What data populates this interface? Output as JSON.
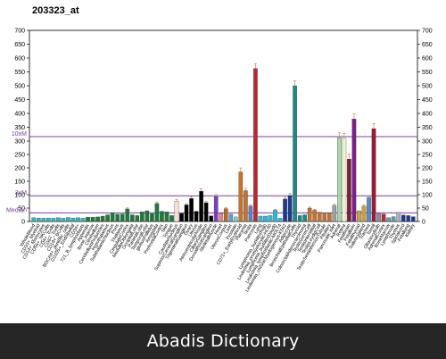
{
  "chart_data": {
    "type": "bar",
    "title": "203323_at",
    "ylim": [
      0,
      700
    ],
    "yticks": [
      0,
      50,
      100,
      150,
      200,
      250,
      300,
      350,
      400,
      450,
      500,
      550,
      600,
      650,
      700
    ],
    "reference_lines": [
      {
        "label": "10xM",
        "value": 316,
        "color": "#7b3fa3"
      },
      {
        "label": "3xM",
        "value": 96,
        "color": "#7b3fa3"
      },
      {
        "label": "Median",
        "value": 32,
        "color": "#7b3fa3"
      }
    ],
    "bars": [
      {
        "label": "WholeBlood",
        "value": 14,
        "color": "#2bb7b7"
      },
      {
        "label": "CD33+_Myeloid",
        "value": 13,
        "color": "#2bb7b7"
      },
      {
        "label": "CD14+_Monocytes",
        "value": 12,
        "color": "#2bb7b7"
      },
      {
        "label": "CD56+_NKCells",
        "value": 13,
        "color": "#2bb7b7"
      },
      {
        "label": "CD4+_Tcells",
        "value": 12,
        "color": "#2bb7b7"
      },
      {
        "label": "CD8+_Tcells",
        "value": 14,
        "color": "#2bb7b7"
      },
      {
        "label": "CD19+_BCells",
        "value": 12,
        "color": "#2bb7b7"
      },
      {
        "label": "BDCA4+_dentritic_cells",
        "value": 15,
        "color": "#2bb7b7"
      },
      {
        "label": "CD105+_Endothelial",
        "value": 13,
        "color": "#2bb7b7"
      },
      {
        "label": "CD34+",
        "value": 14,
        "color": "#2bb7b7"
      },
      {
        "label": "721_B_lymphoblasts",
        "value": 12,
        "color": "#2bb7b7"
      },
      {
        "label": "Appendix",
        "value": 16,
        "color": "#1f7a3a"
      },
      {
        "label": "Bone_marrow",
        "value": 16,
        "color": "#1f7a3a"
      },
      {
        "label": "Cerebellum",
        "value": 17,
        "color": "#1f7a3a"
      },
      {
        "label": "CerebellumPeduncles",
        "value": 20,
        "color": "#1f7a3a"
      },
      {
        "label": "Hypothalamus",
        "value": 25,
        "color": "#1f7a3a"
      },
      {
        "label": "SubthalamicNucleus",
        "value": 33,
        "color": "#1f7a3a"
      },
      {
        "label": "Pons",
        "value": 27,
        "color": "#1f7a3a"
      },
      {
        "label": "Thalamus",
        "value": 28,
        "color": "#1f7a3a"
      },
      {
        "label": "CingulateCortex",
        "value": 47,
        "color": "#1f7a3a"
      },
      {
        "label": "MedullaOblongata",
        "value": 25,
        "color": "#1f7a3a"
      },
      {
        "label": "OccipitalLobe",
        "value": 22,
        "color": "#1f7a3a"
      },
      {
        "label": "ParietalLobe",
        "value": 36,
        "color": "#1f7a3a"
      },
      {
        "label": "TemporalLobe",
        "value": 40,
        "color": "#1f7a3a"
      },
      {
        "label": "globusPallidus",
        "value": 29,
        "color": "#1f7a3a"
      },
      {
        "label": "Amygdala",
        "value": 67,
        "color": "#1f7a3a"
      },
      {
        "label": "PrefrontalCortex",
        "value": 38,
        "color": "#1f7a3a"
      },
      {
        "label": "Skin",
        "value": 36,
        "color": "#1f7a3a"
      },
      {
        "label": "Tongue",
        "value": 22,
        "color": "#1f7a3a"
      },
      {
        "label": "CaudateNucleus",
        "value": 76,
        "color": "#f4e0d0"
      },
      {
        "label": "SuperiorCervicalGanglion",
        "value": 30,
        "color": "#000000"
      },
      {
        "label": "TrigeminalGanglion",
        "value": 62,
        "color": "#000000"
      },
      {
        "label": "Ovary",
        "value": 86,
        "color": "#000000"
      },
      {
        "label": "Uterus",
        "value": 38,
        "color": "#000000"
      },
      {
        "label": "AtrioventricularNode",
        "value": 113,
        "color": "#000000"
      },
      {
        "label": "CiliaryGanglion",
        "value": 70,
        "color": "#000000"
      },
      {
        "label": "DorsalRootGanglion",
        "value": 21,
        "color": "#000000"
      },
      {
        "label": "SkeletalMuscle",
        "value": 93,
        "color": "#7b3fc4"
      },
      {
        "label": "Heart",
        "value": 30,
        "color": "#f08080"
      },
      {
        "label": "UterusCorpus",
        "value": 48,
        "color": "#b46a2a"
      },
      {
        "label": "Liver",
        "value": 27,
        "color": "#5aa0d0"
      },
      {
        "label": "Prostate",
        "value": 17,
        "color": "#7fd0c0"
      },
      {
        "label": "CD71+_EarlyErythroid",
        "value": 185,
        "color": "#c4742c"
      },
      {
        "label": "Placenta",
        "value": 115,
        "color": "#c4742c"
      },
      {
        "label": "Testis",
        "value": 58,
        "color": "#5a7fc4"
      },
      {
        "label": "Pancreas",
        "value": 562,
        "color": "#c0262e"
      },
      {
        "label": "Lung",
        "value": 20,
        "color": "#2bb7d7"
      },
      {
        "label": "Lymphoma_burkitts(Raji)",
        "value": 20,
        "color": "#2bb7d7"
      },
      {
        "label": "Leukemia_promyelocytic-HL60",
        "value": 22,
        "color": "#2bb7d7"
      },
      {
        "label": "Lymphoma_burkitts(Daudi)",
        "value": 42,
        "color": "#2bb7d7"
      },
      {
        "label": "Leukemia_lymphoblastic-MOLT4",
        "value": 12,
        "color": "#2bb7d7"
      },
      {
        "label": "Leukemia_chronicMyelogenous-K562",
        "value": 84,
        "color": "#1e3a8a"
      },
      {
        "label": "Adipocyte",
        "value": 97,
        "color": "#1e3a8a"
      },
      {
        "label": "BronchialEpithelialCells",
        "value": 500,
        "color": "#1a8a8a"
      },
      {
        "label": "Thyroid",
        "value": 22,
        "color": "#1a8a8a"
      },
      {
        "label": "ColorectalAdenocarcinoma",
        "value": 25,
        "color": "#1a8a8a"
      },
      {
        "label": "TestisGermCell",
        "value": 50,
        "color": "#c4742c"
      },
      {
        "label": "TestisInterstitial",
        "value": 42,
        "color": "#c4742c"
      },
      {
        "label": "TestisLeydigCell",
        "value": 35,
        "color": "#c4742c"
      },
      {
        "label": "TestisSeminiferousTubule",
        "value": 30,
        "color": "#c4742c"
      },
      {
        "label": "Pituitary",
        "value": 32,
        "color": "#c4742c"
      },
      {
        "label": "Pancreatic Islet",
        "value": 60,
        "color": "#9aa0a8"
      },
      {
        "label": "Adrenal",
        "value": 312,
        "color": "#a8d8a8"
      },
      {
        "label": "Retina",
        "value": 310,
        "color": "#f0f0d0"
      },
      {
        "label": "Fetalbrain",
        "value": 233,
        "color": "#7b1f3a"
      },
      {
        "label": "Fetalliver",
        "value": 380,
        "color": "#7b1f8a"
      },
      {
        "label": "Fetalthyroid",
        "value": 40,
        "color": "#c8a040"
      },
      {
        "label": "Salivarygland",
        "value": 57,
        "color": "#c8a040"
      },
      {
        "label": "Trachea",
        "value": 90,
        "color": "#5a8ac4"
      },
      {
        "label": "Tonsil",
        "value": 345,
        "color": "#9a1a3a"
      },
      {
        "label": "OlfactoryBulb",
        "value": 30,
        "color": "#8a8a9a"
      },
      {
        "label": "AdrenalCortex",
        "value": 28,
        "color": "#c0262e"
      },
      {
        "label": "BoneMarrow",
        "value": 14,
        "color": "#5aa0a0"
      },
      {
        "label": "Lymphnode",
        "value": 18,
        "color": "#5aa0a0"
      },
      {
        "label": "Thymus",
        "value": 34,
        "color": "#b0b0c0"
      },
      {
        "label": "Spinalcord",
        "value": 24,
        "color": "#1e3a8a"
      },
      {
        "label": "Fetallung",
        "value": 22,
        "color": "#1e3a8a"
      },
      {
        "label": "Kidney",
        "value": 18,
        "color": "#1e3a8a"
      }
    ]
  },
  "footer": {
    "text": "Abadis Dictionary"
  }
}
